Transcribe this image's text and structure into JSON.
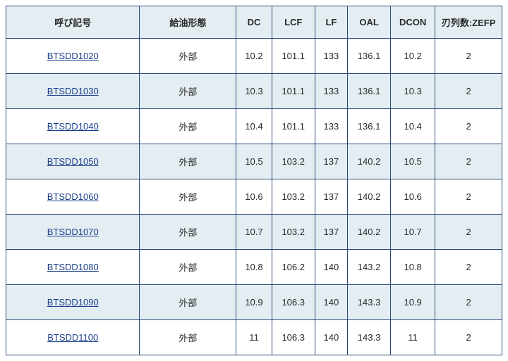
{
  "columns": [
    {
      "key": "model",
      "label": "呼び記号"
    },
    {
      "key": "lube",
      "label": "給油形態"
    },
    {
      "key": "dc",
      "label": "DC"
    },
    {
      "key": "lcf",
      "label": "LCF"
    },
    {
      "key": "lf",
      "label": "LF"
    },
    {
      "key": "oal",
      "label": "OAL"
    },
    {
      "key": "dcon",
      "label": "DCON"
    },
    {
      "key": "zefp",
      "label": "刃列数:ZEFP"
    }
  ],
  "rows": [
    {
      "model": "BTSDD1020",
      "lube": "外部",
      "dc": "10.2",
      "lcf": "101.1",
      "lf": "133",
      "oal": "136.1",
      "dcon": "10.2",
      "zefp": "2"
    },
    {
      "model": "BTSDD1030",
      "lube": "外部",
      "dc": "10.3",
      "lcf": "101.1",
      "lf": "133",
      "oal": "136.1",
      "dcon": "10.3",
      "zefp": "2"
    },
    {
      "model": "BTSDD1040",
      "lube": "外部",
      "dc": "10.4",
      "lcf": "101.1",
      "lf": "133",
      "oal": "136.1",
      "dcon": "10.4",
      "zefp": "2"
    },
    {
      "model": "BTSDD1050",
      "lube": "外部",
      "dc": "10.5",
      "lcf": "103.2",
      "lf": "137",
      "oal": "140.2",
      "dcon": "10.5",
      "zefp": "2"
    },
    {
      "model": "BTSDD1060",
      "lube": "外部",
      "dc": "10.6",
      "lcf": "103.2",
      "lf": "137",
      "oal": "140.2",
      "dcon": "10.6",
      "zefp": "2"
    },
    {
      "model": "BTSDD1070",
      "lube": "外部",
      "dc": "10.7",
      "lcf": "103.2",
      "lf": "137",
      "oal": "140.2",
      "dcon": "10.7",
      "zefp": "2"
    },
    {
      "model": "BTSDD1080",
      "lube": "外部",
      "dc": "10.8",
      "lcf": "106.2",
      "lf": "140",
      "oal": "143.2",
      "dcon": "10.8",
      "zefp": "2"
    },
    {
      "model": "BTSDD1090",
      "lube": "外部",
      "dc": "10.9",
      "lcf": "106.3",
      "lf": "140",
      "oal": "143.3",
      "dcon": "10.9",
      "zefp": "2"
    },
    {
      "model": "BTSDD1100",
      "lube": "外部",
      "dc": "11",
      "lcf": "106.3",
      "lf": "140",
      "oal": "143.3",
      "dcon": "11",
      "zefp": "2"
    }
  ]
}
